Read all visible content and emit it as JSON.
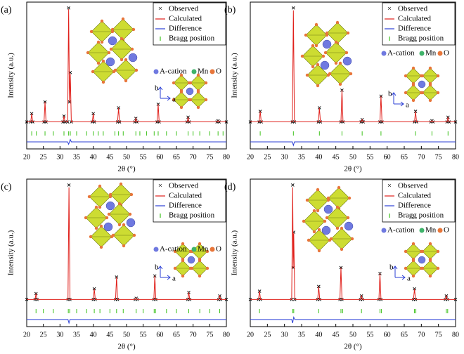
{
  "chart_data": [
    {
      "type": "line",
      "panel": "(a)",
      "xlabel": "2θ (°)",
      "ylabel": "Intensity (a.u.)",
      "xlim": [
        20,
        80
      ],
      "ylim": [
        -0.2,
        1.05
      ],
      "xticks": [
        20,
        25,
        30,
        35,
        40,
        45,
        50,
        55,
        60,
        65,
        70,
        75,
        80
      ],
      "legend": "upper right",
      "x": [
        20,
        21.2,
        21.5,
        21.8,
        25.2,
        25.5,
        25.8,
        30.9,
        31.2,
        31.5,
        32.3,
        32.6,
        32.85,
        33.1,
        33.4,
        39.7,
        40.0,
        40.3,
        47.3,
        47.6,
        47.9,
        52.5,
        52.8,
        53.1,
        59.2,
        59.5,
        59.8,
        68.2,
        68.5,
        68.8,
        77.2,
        77.5,
        77.8,
        80
      ],
      "series": [
        {
          "name": "Observed",
          "color": "#000000",
          "style": "marker",
          "values": [
            0.03,
            0.03,
            0.1,
            0.03,
            0.03,
            0.2,
            0.03,
            0.03,
            0.08,
            0.03,
            0.03,
            1.0,
            0.2,
            0.45,
            0.03,
            0.03,
            0.1,
            0.03,
            0.03,
            0.15,
            0.03,
            0.03,
            0.06,
            0.03,
            0.03,
            0.18,
            0.03,
            0.03,
            0.07,
            0.03,
            0.03,
            0.04,
            0.03,
            0.03
          ]
        },
        {
          "name": "Calculated",
          "color": "#e0201b",
          "style": "line",
          "values": [
            0.03,
            0.03,
            0.1,
            0.03,
            0.03,
            0.2,
            0.03,
            0.03,
            0.08,
            0.03,
            0.03,
            0.99,
            0.2,
            0.44,
            0.03,
            0.03,
            0.1,
            0.03,
            0.03,
            0.15,
            0.03,
            0.03,
            0.06,
            0.03,
            0.03,
            0.18,
            0.03,
            0.03,
            0.07,
            0.03,
            0.03,
            0.04,
            0.03,
            0.03
          ]
        },
        {
          "name": "Difference",
          "color": "#2b3fd6",
          "style": "line",
          "values": [
            -0.14,
            -0.14,
            -0.14,
            -0.14,
            -0.14,
            -0.14,
            -0.14,
            -0.14,
            -0.14,
            -0.14,
            -0.14,
            -0.16,
            -0.14,
            -0.12,
            -0.14,
            -0.14,
            -0.14,
            -0.14,
            -0.14,
            -0.14,
            -0.14,
            -0.14,
            -0.14,
            -0.14,
            -0.14,
            -0.14,
            -0.14,
            -0.14,
            -0.14,
            -0.14,
            -0.14,
            -0.14,
            -0.14,
            -0.14
          ]
        },
        {
          "name": "Bragg position",
          "color": "#3cc21a",
          "style": "tick",
          "positions": [
            21.5,
            22.9,
            25.5,
            28,
            31.2,
            32.6,
            33.1,
            35,
            38,
            40,
            41.5,
            43,
            46.5,
            47.6,
            49,
            52.8,
            54,
            56,
            58.3,
            59.5,
            62,
            65,
            68.5,
            70,
            72,
            75,
            77.5,
            79
          ]
        }
      ],
      "inset_labels": [
        "A-cation",
        "Mn",
        "O"
      ],
      "axis_labels": [
        "b",
        "a"
      ]
    },
    {
      "type": "line",
      "panel": "(b)",
      "xlabel": "2θ (°)",
      "ylabel": "Intensity (a.u.)",
      "xlim": [
        20,
        80
      ],
      "ylim": [
        -0.2,
        1.05
      ],
      "xticks": [
        20,
        25,
        30,
        35,
        40,
        45,
        50,
        55,
        60,
        65,
        70,
        75,
        80
      ],
      "legend": "upper right",
      "x": [
        20,
        22.6,
        22.9,
        23.2,
        32.3,
        32.6,
        32.9,
        39.9,
        40.2,
        40.5,
        46.5,
        46.8,
        47.1,
        52.4,
        52.7,
        53.0,
        57.9,
        58.2,
        58.5,
        68.0,
        68.3,
        68.6,
        72.8,
        73.1,
        73.4,
        77.5,
        77.8,
        78.1,
        80
      ],
      "series": [
        {
          "name": "Observed",
          "color": "#000000",
          "style": "marker",
          "values": [
            0.03,
            0.03,
            0.12,
            0.03,
            0.03,
            1.0,
            0.03,
            0.03,
            0.15,
            0.03,
            0.03,
            0.3,
            0.03,
            0.03,
            0.05,
            0.03,
            0.03,
            0.25,
            0.03,
            0.03,
            0.12,
            0.03,
            0.03,
            0.04,
            0.03,
            0.03,
            0.07,
            0.03,
            0.03
          ]
        },
        {
          "name": "Calculated",
          "color": "#e0201b",
          "style": "line",
          "values": [
            0.03,
            0.03,
            0.12,
            0.03,
            0.03,
            0.98,
            0.03,
            0.03,
            0.15,
            0.03,
            0.03,
            0.3,
            0.03,
            0.03,
            0.05,
            0.03,
            0.03,
            0.25,
            0.03,
            0.03,
            0.12,
            0.03,
            0.03,
            0.04,
            0.03,
            0.03,
            0.07,
            0.03,
            0.03
          ]
        },
        {
          "name": "Difference",
          "color": "#2b3fd6",
          "style": "line",
          "values": [
            -0.14,
            -0.14,
            -0.14,
            -0.14,
            -0.14,
            -0.17,
            -0.14,
            -0.14,
            -0.14,
            -0.14,
            -0.14,
            -0.14,
            -0.14,
            -0.14,
            -0.14,
            -0.14,
            -0.14,
            -0.14,
            -0.14,
            -0.14,
            -0.14,
            -0.14,
            -0.14,
            -0.14,
            -0.14,
            -0.14,
            -0.14,
            -0.14,
            -0.14
          ]
        },
        {
          "name": "Bragg position",
          "color": "#3cc21a",
          "style": "tick",
          "positions": [
            22.9,
            32.6,
            40.2,
            46.8,
            52.7,
            58.2,
            68.3,
            73.1,
            77.8
          ]
        }
      ],
      "inset_labels": [
        "A-cation",
        "Mn",
        "O"
      ],
      "axis_labels": [
        "b",
        "a"
      ]
    },
    {
      "type": "line",
      "panel": "(c)",
      "xlabel": "2θ (°)",
      "ylabel": "Intensity (a.u.)",
      "xlim": [
        20,
        80
      ],
      "ylim": [
        -0.2,
        1.05
      ],
      "xticks": [
        20,
        25,
        30,
        35,
        40,
        45,
        50,
        55,
        60,
        65,
        70,
        75,
        80
      ],
      "legend": "upper right",
      "x": [
        20,
        22.5,
        22.8,
        23.1,
        32.4,
        32.7,
        33.0,
        40.0,
        40.3,
        40.6,
        46.7,
        47.0,
        47.3,
        52.6,
        52.9,
        53.2,
        58.2,
        58.5,
        58.8,
        68.4,
        68.7,
        69.0,
        77.7,
        78.0,
        78.3,
        80
      ],
      "series": [
        {
          "name": "Observed",
          "color": "#000000",
          "style": "marker",
          "values": [
            0.03,
            0.03,
            0.08,
            0.03,
            0.03,
            1.0,
            0.03,
            0.03,
            0.12,
            0.03,
            0.03,
            0.22,
            0.03,
            0.03,
            0.04,
            0.03,
            0.03,
            0.23,
            0.03,
            0.03,
            0.09,
            0.03,
            0.03,
            0.06,
            0.03,
            0.03
          ]
        },
        {
          "name": "Calculated",
          "color": "#e0201b",
          "style": "line",
          "values": [
            0.03,
            0.03,
            0.08,
            0.03,
            0.03,
            0.98,
            0.03,
            0.03,
            0.12,
            0.03,
            0.03,
            0.22,
            0.03,
            0.03,
            0.04,
            0.03,
            0.03,
            0.23,
            0.03,
            0.03,
            0.09,
            0.03,
            0.03,
            0.06,
            0.03,
            0.03
          ]
        },
        {
          "name": "Difference",
          "color": "#2b3fd6",
          "style": "line",
          "values": [
            -0.14,
            -0.14,
            -0.14,
            -0.14,
            -0.14,
            -0.17,
            -0.14,
            -0.14,
            -0.14,
            -0.14,
            -0.14,
            -0.14,
            -0.14,
            -0.14,
            -0.14,
            -0.14,
            -0.14,
            -0.14,
            -0.14,
            -0.14,
            -0.14,
            -0.14,
            -0.14,
            -0.14,
            -0.14,
            -0.14
          ]
        },
        {
          "name": "Bragg position",
          "color": "#3cc21a",
          "style": "tick",
          "positions": [
            22.8,
            25,
            28,
            32.5,
            32.9,
            35,
            38,
            40.3,
            42,
            45,
            47,
            49,
            52.9,
            55,
            58.3,
            58.7,
            62,
            65,
            68.7,
            72,
            75,
            78
          ]
        }
      ],
      "inset_labels": [
        "A-cation",
        "Mn",
        "O"
      ],
      "axis_labels": [
        "b",
        "a"
      ]
    },
    {
      "type": "line",
      "panel": "(d)",
      "xlabel": "2θ (°)",
      "ylabel": "Intensity (a.u.)",
      "xlim": [
        20,
        80
      ],
      "ylim": [
        -0.2,
        1.05
      ],
      "xticks": [
        20,
        25,
        30,
        35,
        40,
        45,
        50,
        55,
        60,
        65,
        70,
        75,
        80
      ],
      "legend": "upper right",
      "x": [
        20,
        22.4,
        22.7,
        23.0,
        32.1,
        32.4,
        32.55,
        32.7,
        33.0,
        39.7,
        40.0,
        40.3,
        46.2,
        46.5,
        46.8,
        52.2,
        52.5,
        52.8,
        57.6,
        57.9,
        58.2,
        67.7,
        68.0,
        68.3,
        77.0,
        77.3,
        77.6,
        80
      ],
      "series": [
        {
          "name": "Observed",
          "color": "#000000",
          "style": "marker",
          "values": [
            0.03,
            0.03,
            0.1,
            0.03,
            0.03,
            1.0,
            0.3,
            0.6,
            0.03,
            0.03,
            0.14,
            0.03,
            0.03,
            0.3,
            0.03,
            0.03,
            0.06,
            0.03,
            0.03,
            0.25,
            0.03,
            0.03,
            0.12,
            0.03,
            0.03,
            0.06,
            0.03,
            0.03
          ]
        },
        {
          "name": "Calculated",
          "color": "#e0201b",
          "style": "line",
          "values": [
            0.03,
            0.03,
            0.1,
            0.03,
            0.03,
            0.98,
            0.3,
            0.59,
            0.03,
            0.03,
            0.14,
            0.03,
            0.03,
            0.3,
            0.03,
            0.03,
            0.06,
            0.03,
            0.03,
            0.25,
            0.03,
            0.03,
            0.12,
            0.03,
            0.03,
            0.06,
            0.03,
            0.03
          ]
        },
        {
          "name": "Difference",
          "color": "#2b3fd6",
          "style": "line",
          "values": [
            -0.14,
            -0.14,
            -0.14,
            -0.14,
            -0.14,
            -0.17,
            -0.14,
            -0.12,
            -0.14,
            -0.14,
            -0.14,
            -0.14,
            -0.14,
            -0.14,
            -0.14,
            -0.14,
            -0.14,
            -0.14,
            -0.14,
            -0.14,
            -0.14,
            -0.14,
            -0.14,
            -0.14,
            -0.14,
            -0.14,
            -0.14,
            -0.14
          ]
        },
        {
          "name": "Bragg position",
          "color": "#3cc21a",
          "style": "tick",
          "positions": [
            22.7,
            32.4,
            32.7,
            40,
            46.5,
            47,
            52.5,
            57.9,
            58.3,
            68,
            68.4,
            77.3,
            77.7
          ]
        }
      ],
      "inset_labels": [
        "A-cation",
        "Mn",
        "O"
      ],
      "axis_labels": [
        "b",
        "a"
      ]
    }
  ]
}
